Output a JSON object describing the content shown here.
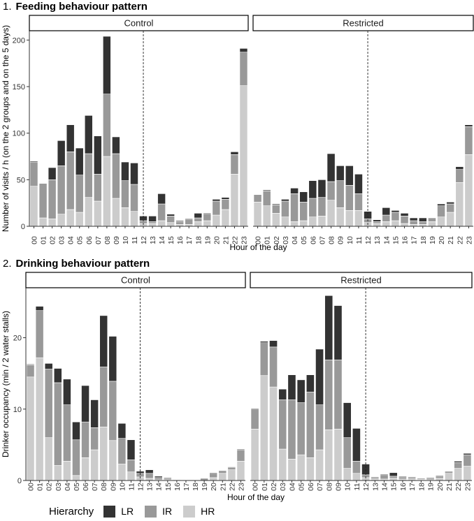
{
  "colors": {
    "LR": "#333333",
    "IR": "#999999",
    "HR": "#cccccc"
  },
  "titles": {
    "feeding": {
      "number": "1.",
      "text": "Feeding behaviour pattern"
    },
    "drinking": {
      "number": "2.",
      "text": "Drinking behaviour pattern"
    }
  },
  "legend": {
    "title": "Hierarchy",
    "items": [
      {
        "key": "LR",
        "label": "LR"
      },
      {
        "key": "IR",
        "label": "IR"
      },
      {
        "key": "HR",
        "label": "HR"
      }
    ]
  },
  "chart_data": [
    {
      "id": "feeding",
      "type": "bar",
      "stacked": true,
      "title": "Feeding behaviour pattern",
      "xlabel": "Hour of the day",
      "ylabel": "Number of visits / h (on the 2 groups and on the 5 days)",
      "ylim": [
        0,
        210
      ],
      "yticks": [
        0,
        50,
        100,
        150,
        200
      ],
      "categories": [
        "00",
        "01",
        "02",
        "03",
        "04",
        "05",
        "06",
        "07",
        "08",
        "09",
        "10",
        "11",
        "12",
        "13",
        "14",
        "15",
        "16",
        "17",
        "18",
        "19",
        "20",
        "21",
        "22",
        "23"
      ],
      "vline_at": "12",
      "series_order": [
        "HR",
        "IR",
        "LR"
      ],
      "facets": [
        {
          "label": "Control",
          "series": [
            {
              "name": "HR",
              "values": [
                43,
                9,
                8,
                13,
                18,
                15,
                31,
                27,
                75,
                30,
                20,
                16,
                3,
                3,
                6,
                4,
                2,
                2,
                5,
                6,
                12,
                18,
                56,
                151
              ]
            },
            {
              "name": "IR",
              "values": [
                26,
                37,
                42,
                52,
                62,
                40,
                47,
                29,
                67,
                48,
                29,
                29,
                3,
                2,
                18,
                7,
                3,
                5,
                4,
                7,
                15,
                11,
                21,
                36
              ]
            },
            {
              "name": "LR",
              "values": [
                1,
                0,
                13,
                27,
                29,
                29,
                41,
                41,
                62,
                18,
                20,
                23,
                5,
                6,
                11,
                2,
                1,
                1,
                5,
                1,
                2,
                2,
                3,
                4
              ]
            }
          ]
        },
        {
          "label": "Restricted",
          "series": [
            {
              "name": "HR",
              "values": [
                26,
                22,
                14,
                10,
                5,
                6,
                10,
                11,
                28,
                20,
                17,
                17,
                4,
                3,
                5,
                6,
                3,
                2,
                2,
                5,
                10,
                15,
                47,
                77
              ]
            },
            {
              "name": "IR",
              "values": [
                8,
                16,
                9,
                17,
                30,
                20,
                20,
                20,
                20,
                29,
                27,
                18,
                4,
                2,
                7,
                9,
                8,
                4,
                3,
                4,
                12,
                9,
                14,
                30
              ]
            },
            {
              "name": "LR",
              "values": [
                0,
                1,
                1,
                2,
                6,
                11,
                19,
                19,
                30,
                16,
                21,
                21,
                8,
                2,
                8,
                2,
                3,
                3,
                4,
                0,
                2,
                2,
                3,
                2
              ]
            }
          ]
        }
      ]
    },
    {
      "id": "drinking",
      "type": "bar",
      "stacked": true,
      "title": "Drinking behaviour pattern",
      "xlabel": "Hour of the day",
      "ylabel": "Drinker occupancy (min / 2 water stalls)",
      "ylim": [
        0,
        27
      ],
      "yticks": [
        0,
        10,
        20
      ],
      "categories": [
        "00",
        "01",
        "02",
        "03",
        "04",
        "05",
        "06",
        "07",
        "08",
        "09",
        "10",
        "11",
        "12",
        "13",
        "14",
        "15",
        "16",
        "17",
        "18",
        "19",
        "20",
        "21",
        "22",
        "23"
      ],
      "vline_at": "12",
      "series_order": [
        "HR",
        "IR",
        "LR"
      ],
      "facets": [
        {
          "label": "Control",
          "series": [
            {
              "name": "HR",
              "values": [
                14.5,
                17.2,
                6,
                2.1,
                2.7,
                0.7,
                3.2,
                4.3,
                7.5,
                5.6,
                2.3,
                1.2,
                0.5,
                0.3,
                0.1,
                0.1,
                0,
                0,
                0,
                0,
                0.4,
                1,
                1.5,
                2.7
              ]
            },
            {
              "name": "IR",
              "values": [
                1.7,
                6.6,
                9.6,
                11.6,
                7.9,
                5,
                5,
                3.1,
                8.4,
                8.3,
                3.6,
                1.7,
                0.5,
                0.7,
                0.3,
                0.2,
                0.1,
                0.05,
                0,
                0.3,
                0.6,
                0.3,
                0.3,
                1.6
              ]
            },
            {
              "name": "LR",
              "values": [
                0.1,
                0.6,
                0.8,
                2,
                3.6,
                2.5,
                5.1,
                3.9,
                7.2,
                6.3,
                2.1,
                2.8,
                0.3,
                0.5,
                0.2,
                0.1,
                0.05,
                0,
                0,
                0,
                0.1,
                0.1,
                0.1,
                0.1
              ]
            }
          ]
        },
        {
          "label": "Restricted",
          "series": [
            {
              "name": "HR",
              "values": [
                7.2,
                14.7,
                13.1,
                4.4,
                3,
                3.6,
                3.2,
                4.3,
                7.1,
                7.2,
                1.7,
                1,
                0.4,
                0.2,
                0.2,
                0.3,
                0.2,
                0.2,
                0.1,
                0.1,
                0.3,
                1,
                1.7,
                2
              ]
            },
            {
              "name": "IR",
              "values": [
                2.8,
                4.6,
                5.6,
                6.9,
                8.3,
                7.3,
                9.2,
                6.3,
                9.8,
                9.7,
                4.3,
                1.7,
                0.4,
                0.2,
                0.6,
                0.3,
                0.3,
                0.2,
                0.1,
                0.2,
                0.3,
                0.2,
                0.8,
                1.6
              ]
            },
            {
              "name": "LR",
              "values": [
                0.1,
                0.2,
                0.9,
                1.5,
                3.5,
                3.2,
                2.4,
                7.8,
                9,
                7.6,
                4.9,
                4.6,
                1.5,
                0.1,
                0.1,
                0.5,
                0.1,
                0.1,
                0.1,
                0.1,
                0.1,
                0.1,
                0.2,
                0.2
              ]
            }
          ]
        }
      ]
    }
  ]
}
